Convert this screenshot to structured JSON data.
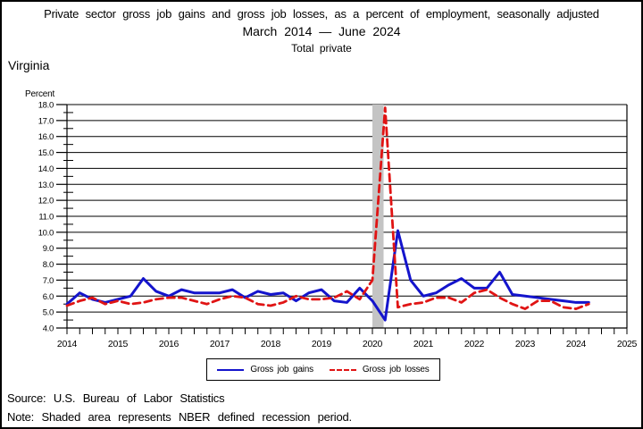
{
  "header": {
    "title": "Private sector gross job gains and gross job losses, as a percent of employment, seasonally adjusted",
    "date_range": "March 2014 — June 2024",
    "industry": "Total private",
    "region": "Virginia"
  },
  "footer": {
    "source": "Source: U.S. Bureau of Labor Statistics",
    "note": "Note: Shaded area represents NBER defined recession period."
  },
  "legend": {
    "gains_label": "Gross job gains",
    "losses_label": "Gross job losses"
  },
  "chart_data": {
    "type": "line",
    "title": "Private sector gross job gains and gross job losses, as a percent of employment, seasonally adjusted",
    "subtitle": "March 2014 — June 2024",
    "industry": "Total private",
    "region": "Virginia",
    "xlabel": "",
    "ylabel": "Percent",
    "xlim": [
      2014,
      2025
    ],
    "ylim": [
      4.0,
      18.0
    ],
    "ytick_major": 1.0,
    "ytick_minor": 0.5,
    "xtick_minor_step": 0.25,
    "grid": "horizontal-major",
    "legend_position": "bottom-center",
    "ytick_labels": [
      "4.0",
      "5.0",
      "6.0",
      "7.0",
      "8.0",
      "9.0",
      "10.0",
      "11.0",
      "12.0",
      "13.0",
      "14.0",
      "15.0",
      "16.0",
      "17.0",
      "18.0"
    ],
    "xtick_labels": [
      "2014",
      "2015",
      "2016",
      "2017",
      "2018",
      "2019",
      "2020",
      "2021",
      "2022",
      "2023",
      "2024",
      "2025"
    ],
    "x": [
      2014.0,
      2014.25,
      2014.5,
      2014.75,
      2015.0,
      2015.25,
      2015.5,
      2015.75,
      2016.0,
      2016.25,
      2016.5,
      2016.75,
      2017.0,
      2017.25,
      2017.5,
      2017.75,
      2018.0,
      2018.25,
      2018.5,
      2018.75,
      2019.0,
      2019.25,
      2019.5,
      2019.75,
      2020.0,
      2020.25,
      2020.5,
      2020.75,
      2021.0,
      2021.25,
      2021.5,
      2021.75,
      2022.0,
      2022.25,
      2022.5,
      2022.75,
      2023.0,
      2023.25,
      2023.5,
      2023.75,
      2024.0,
      2024.25
    ],
    "series": [
      {
        "name": "Gross job gains",
        "color": "#1414cc",
        "style": "solid",
        "values": [
          5.5,
          6.2,
          5.8,
          5.6,
          5.8,
          6.0,
          7.1,
          6.3,
          6.0,
          6.4,
          6.2,
          6.2,
          6.2,
          6.4,
          5.9,
          6.3,
          6.1,
          6.2,
          5.7,
          6.2,
          6.4,
          5.7,
          5.6,
          6.5,
          5.7,
          4.5,
          10.1,
          7.0,
          6.0,
          6.2,
          6.7,
          7.1,
          6.5,
          6.5,
          7.5,
          6.1,
          6.0,
          5.9,
          5.8,
          5.7,
          5.6,
          5.6
        ]
      },
      {
        "name": "Gross job losses",
        "color": "#e01414",
        "style": "dashed",
        "values": [
          5.4,
          5.7,
          5.9,
          5.5,
          5.7,
          5.5,
          5.6,
          5.8,
          5.9,
          5.9,
          5.7,
          5.5,
          5.8,
          6.0,
          5.9,
          5.5,
          5.4,
          5.6,
          6.0,
          5.8,
          5.8,
          5.9,
          6.3,
          5.8,
          7.0,
          17.8,
          5.3,
          5.5,
          5.6,
          5.9,
          5.9,
          5.6,
          6.2,
          6.4,
          5.9,
          5.5,
          5.2,
          5.7,
          5.7,
          5.3,
          5.2,
          5.5
        ]
      }
    ],
    "recession_band": {
      "from": 2020.0,
      "to": 2020.22,
      "color": "#c4c4c4",
      "label": "NBER defined recession period"
    }
  }
}
